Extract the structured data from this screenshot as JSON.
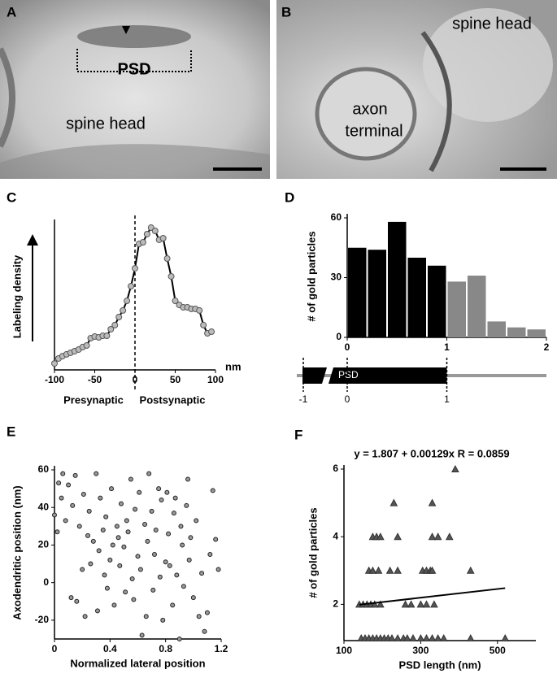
{
  "panels": [
    {
      "label": "A",
      "texts": [
        "PSD",
        "spine head"
      ]
    },
    {
      "label": "B",
      "texts": [
        "spine head",
        "axon",
        "terminal"
      ]
    }
  ],
  "chart_data": [
    {
      "type": "line",
      "label": "C",
      "ylabel": "Labeling density",
      "xlabel_left": "Presynaptic",
      "xlabel_right": "Postsynaptic",
      "xunit": "nm",
      "color": "#000000",
      "x": [
        -100,
        -95,
        -90,
        -85,
        -80,
        -75,
        -70,
        -65,
        -60,
        -55,
        -50,
        -45,
        -40,
        -35,
        -30,
        -25,
        -20,
        -15,
        -10,
        -5,
        0,
        5,
        10,
        15,
        20,
        25,
        30,
        35,
        40,
        45,
        50,
        55,
        60,
        65,
        70,
        75,
        80,
        85,
        90,
        95
      ],
      "values": [
        4.4,
        7.8,
        9.4,
        10.6,
        11.7,
        12.8,
        13.9,
        15.6,
        16.7,
        21.7,
        22.8,
        22.2,
        23.3,
        23.3,
        27.8,
        30.6,
        36.1,
        40.6,
        47.2,
        57.2,
        69.4,
        86.1,
        87.2,
        92.8,
        97.2,
        95,
        88.9,
        90,
        76.1,
        63.9,
        47.2,
        44.4,
        42.8,
        42.8,
        41.7,
        41.7,
        40.6,
        30.6,
        25,
        26.1
      ],
      "xlim": [
        -100,
        100
      ],
      "xticks": [
        -100,
        -50,
        0,
        50,
        100
      ],
      "ylim": [
        0,
        100
      ]
    },
    {
      "type": "histogram",
      "label": "D",
      "ylabel": "# of gold particles",
      "bins": [
        0,
        0.2,
        0.4,
        0.6,
        0.8,
        1,
        1.2,
        1.4,
        1.6,
        1.8,
        2
      ],
      "values": [
        45,
        44,
        58,
        40,
        36,
        28,
        31,
        8,
        5,
        4
      ],
      "colors": [
        "#000000",
        "#000000",
        "#000000",
        "#000000",
        "#000000",
        "#888888",
        "#888888",
        "#888888",
        "#888888",
        "#888888"
      ],
      "ylim": [
        0,
        60
      ],
      "yticks": [
        0,
        30,
        60
      ],
      "xticks": [
        0,
        1,
        2
      ],
      "schematic": {
        "label": "PSD",
        "ticks": [
          -1,
          0,
          1
        ]
      }
    },
    {
      "type": "scatter",
      "label": "E",
      "marker": "circle",
      "xlabel": "Normalized lateral position",
      "ylabel": "Axodendritic position (nm)",
      "x": [
        0.0,
        0.02,
        0.03,
        0.05,
        0.06,
        0.08,
        0.1,
        0.12,
        0.13,
        0.15,
        0.16,
        0.18,
        0.2,
        0.21,
        0.22,
        0.24,
        0.25,
        0.26,
        0.28,
        0.3,
        0.31,
        0.32,
        0.33,
        0.35,
        0.36,
        0.37,
        0.38,
        0.4,
        0.41,
        0.42,
        0.43,
        0.45,
        0.46,
        0.47,
        0.48,
        0.5,
        0.51,
        0.52,
        0.53,
        0.55,
        0.56,
        0.57,
        0.58,
        0.6,
        0.61,
        0.62,
        0.63,
        0.65,
        0.66,
        0.67,
        0.68,
        0.7,
        0.71,
        0.72,
        0.73,
        0.75,
        0.76,
        0.77,
        0.78,
        0.8,
        0.81,
        0.82,
        0.83,
        0.85,
        0.86,
        0.87,
        0.88,
        0.9,
        0.91,
        0.92,
        0.93,
        0.95,
        0.96,
        0.97,
        0.98,
        1.0,
        1.02,
        1.04,
        1.06,
        1.08,
        1.1,
        1.12,
        1.14,
        1.16,
        1.18
      ],
      "values": [
        36,
        27,
        53,
        45,
        58,
        33,
        52,
        -8,
        41,
        57,
        -10,
        30,
        7,
        47,
        -18,
        25,
        38,
        10,
        22,
        58,
        -15,
        17,
        45,
        28,
        4,
        35,
        -3,
        12,
        50,
        20,
        -12,
        30,
        24,
        9,
        42,
        19,
        -5,
        33,
        27,
        55,
        2,
        -9,
        39,
        14,
        48,
        7,
        -28,
        31,
        -18,
        22,
        58,
        38,
        -4,
        15,
        28,
        50,
        3,
        44,
        -20,
        11,
        48,
        26,
        9,
        -12,
        37,
        45,
        4,
        -30,
        30,
        20,
        -2,
        41,
        55,
        12,
        24,
        -8,
        33,
        -18,
        5,
        -26,
        -16,
        15,
        49,
        23,
        7
      ],
      "xlim": [
        0,
        1.2
      ],
      "xticks": [
        0,
        0.4,
        0.8,
        1.2
      ],
      "ylim": [
        -30,
        60
      ],
      "yticks": [
        -20,
        0,
        20,
        40,
        60
      ]
    },
    {
      "type": "scatter",
      "label": "F",
      "marker": "triangle",
      "title": "y = 1.807 + 0.00129x  R = 0.0859",
      "xlabel": "PSD length (nm)",
      "ylabel": "# of gold particles",
      "x": [
        145,
        155,
        165,
        175,
        185,
        195,
        205,
        215,
        225,
        240,
        255,
        265,
        280,
        300,
        315,
        330,
        345,
        360,
        430,
        520,
        140,
        150,
        160,
        170,
        180,
        195,
        260,
        275,
        300,
        315,
        335,
        165,
        175,
        190,
        220,
        240,
        305,
        315,
        325,
        330,
        430,
        175,
        185,
        195,
        240,
        330,
        345,
        375,
        230,
        330,
        390
      ],
      "values": [
        1,
        1,
        1,
        1,
        1,
        1,
        1,
        1,
        1,
        1,
        1,
        1,
        1,
        1,
        1,
        1,
        1,
        1,
        1,
        1,
        2,
        2,
        2,
        2,
        2,
        2,
        2,
        2,
        2,
        2,
        2,
        3,
        3,
        3,
        3,
        3,
        3,
        3,
        3,
        3,
        3,
        4,
        4,
        4,
        4,
        4,
        4,
        4,
        5,
        5,
        6
      ],
      "fit": {
        "x": [
          140,
          520
        ],
        "values": [
          1.99,
          2.48
        ]
      },
      "xlim": [
        100,
        600
      ],
      "xticks": [
        100,
        300,
        500
      ],
      "ylim": [
        1,
        6
      ],
      "yticks": [
        2,
        4,
        6
      ]
    }
  ]
}
